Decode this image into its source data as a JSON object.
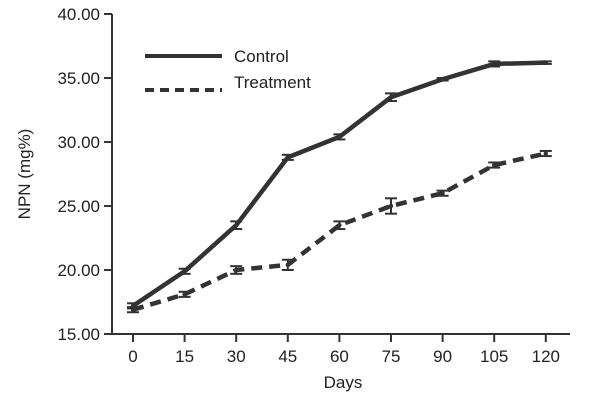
{
  "chart_data": {
    "type": "line",
    "xlabel": "Days",
    "ylabel": "NPN (mg%)",
    "x": [
      "0",
      "15",
      "30",
      "45",
      "60",
      "75",
      "90",
      "105",
      "120"
    ],
    "ylim": [
      15.0,
      40.0
    ],
    "yticks": [
      "15.00",
      "20.00",
      "25.00",
      "30.00",
      "35.00",
      "40.00"
    ],
    "grid": false,
    "legend_position": "top-left",
    "series": [
      {
        "name": "Control",
        "style": "solid",
        "color": "#333333",
        "values": [
          17.2,
          19.9,
          23.5,
          28.8,
          30.4,
          33.5,
          34.9,
          36.1,
          36.2
        ],
        "errors": [
          0.2,
          0.2,
          0.3,
          0.2,
          0.2,
          0.3,
          0.1,
          0.2,
          0.1
        ]
      },
      {
        "name": "Treatment",
        "style": "dashed",
        "color": "#333333",
        "values": [
          16.9,
          18.1,
          20.0,
          20.4,
          23.5,
          25.0,
          26.0,
          28.2,
          29.1
        ],
        "errors": [
          0.2,
          0.2,
          0.3,
          0.4,
          0.3,
          0.6,
          0.2,
          0.2,
          0.2
        ]
      }
    ]
  }
}
